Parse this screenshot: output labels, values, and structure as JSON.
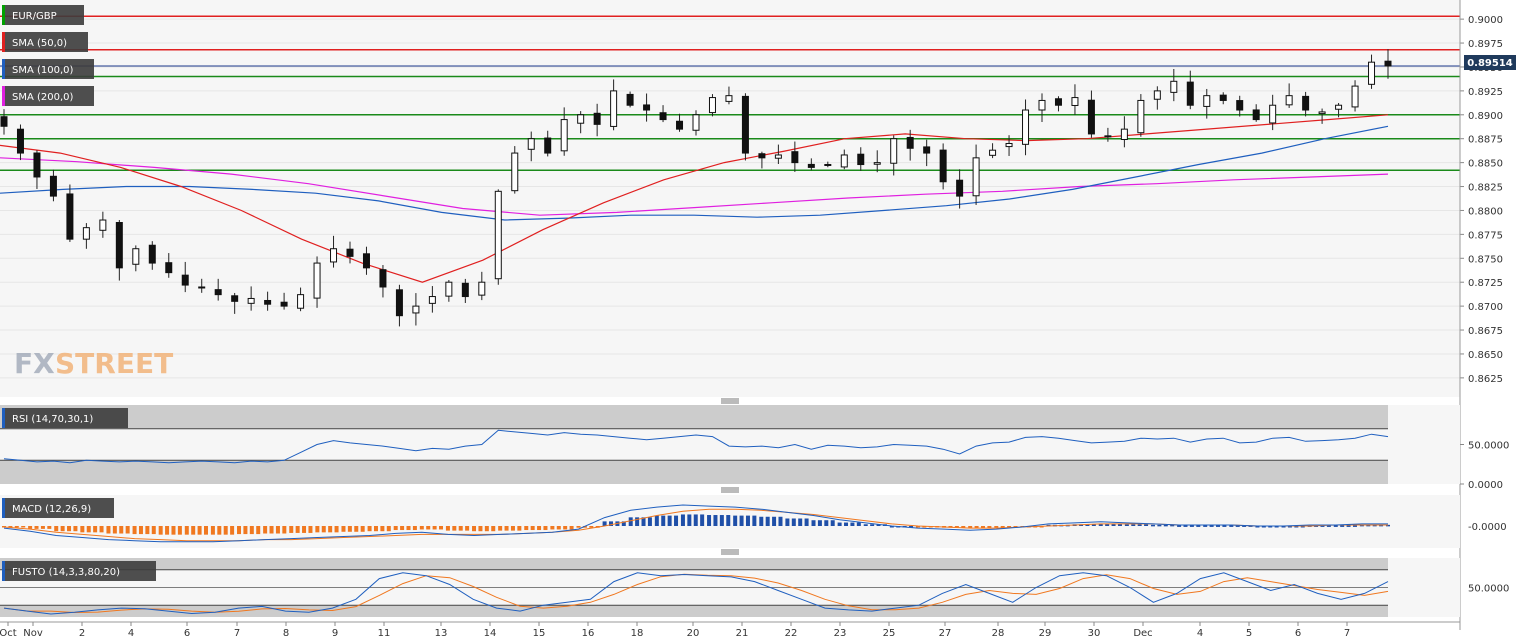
{
  "chart_data": {
    "type": "candlestick",
    "symbol": "EUR/GBP",
    "indicators": [
      "SMA (50,0)",
      "SMA (100,0)",
      "SMA (200,0)"
    ],
    "indicator_colors": [
      "#e02020",
      "#1f5fbf",
      "#e020e0"
    ],
    "current_price": "0.89514",
    "y_ticks": [
      "0.9000",
      "0.8975",
      "0.8950",
      "0.8925",
      "0.8900",
      "0.8875",
      "0.8850",
      "0.8825",
      "0.8800",
      "0.8775",
      "0.8750",
      "0.8725",
      "0.8700",
      "0.8675",
      "0.8650",
      "0.8625"
    ],
    "ylim": [
      0.8605,
      0.902
    ],
    "x_ticks": [
      "Oct",
      "Nov",
      "2",
      "4",
      "6",
      "7",
      "8",
      "9",
      "11",
      "13",
      "14",
      "15",
      "16",
      "18",
      "20",
      "21",
      "22",
      "23",
      "25",
      "27",
      "28",
      "29",
      "30",
      "Dec",
      "4",
      "5",
      "6",
      "7"
    ],
    "red_levels": [
      0.9003,
      0.8968
    ],
    "blue_level": 0.8951,
    "green_levels": [
      0.894,
      0.89,
      0.8875,
      0.8842
    ],
    "close_path": [
      0.8888,
      0.886,
      0.8835,
      0.8815,
      0.877,
      0.8782,
      0.879,
      0.874,
      0.876,
      0.8745,
      0.8735,
      0.8722,
      0.872,
      0.8712,
      0.8705,
      0.8708,
      0.8702,
      0.87,
      0.8712,
      0.8745,
      0.876,
      0.8752,
      0.874,
      0.872,
      0.869,
      0.87,
      0.871,
      0.8725,
      0.871,
      0.8725,
      0.882,
      0.886,
      0.8875,
      0.886,
      0.8895,
      0.89,
      0.889,
      0.8925,
      0.891,
      0.8905,
      0.8895,
      0.8885,
      0.89,
      0.8918,
      0.892,
      0.886,
      0.8855,
      0.8858,
      0.885,
      0.8845,
      0.8848,
      0.8858,
      0.8848,
      0.885,
      0.8875,
      0.8865,
      0.886,
      0.883,
      0.8815,
      0.8855,
      0.8863,
      0.887,
      0.8905,
      0.8915,
      0.891,
      0.8918,
      0.888,
      0.8878,
      0.8885,
      0.8915,
      0.8925,
      0.8935,
      0.891,
      0.892,
      0.8915,
      0.8905,
      0.8895,
      0.891,
      0.892,
      0.8905,
      0.8903,
      0.891,
      0.893,
      0.8955,
      0.8951
    ],
    "sma50_path": [
      0.8868,
      0.886,
      0.8845,
      0.8825,
      0.88,
      0.877,
      0.8745,
      0.8725,
      0.8748,
      0.878,
      0.8808,
      0.8832,
      0.885,
      0.8862,
      0.8875,
      0.888,
      0.8875,
      0.8873,
      0.8875,
      0.888,
      0.8885,
      0.889,
      0.8895,
      0.89
    ],
    "sma100_path": [
      0.8818,
      0.8822,
      0.8825,
      0.8825,
      0.8822,
      0.8818,
      0.881,
      0.8798,
      0.879,
      0.8792,
      0.8795,
      0.8795,
      0.8793,
      0.8795,
      0.88,
      0.8805,
      0.8812,
      0.8822,
      0.8835,
      0.8848,
      0.886,
      0.8875,
      0.8888
    ],
    "sma200_path": [
      0.8855,
      0.8851,
      0.8845,
      0.8838,
      0.8828,
      0.8815,
      0.8802,
      0.8795,
      0.8798,
      0.8803,
      0.8808,
      0.8813,
      0.8817,
      0.882,
      0.8825,
      0.8828,
      0.8832,
      0.8835,
      0.8838
    ],
    "panels": [
      {
        "label": "RSI (14,70,30,1)",
        "ticks": [
          "50.0000",
          "0.0000"
        ],
        "line_color": "#1f5fbf",
        "values": [
          32,
          30,
          28,
          29,
          27,
          30,
          29,
          28,
          29,
          28,
          27,
          28,
          29,
          28,
          27,
          29,
          28,
          30,
          40,
          50,
          55,
          52,
          50,
          48,
          45,
          42,
          45,
          44,
          48,
          50,
          68,
          66,
          64,
          62,
          65,
          63,
          62,
          60,
          58,
          56,
          58,
          60,
          62,
          60,
          48,
          47,
          48,
          46,
          50,
          44,
          49,
          48,
          46,
          47,
          50,
          49,
          48,
          44,
          38,
          48,
          52,
          53,
          59,
          60,
          58,
          55,
          52,
          53,
          54,
          58,
          57,
          58,
          53,
          57,
          58,
          52,
          53,
          58,
          59,
          54,
          55,
          56,
          58,
          63,
          60
        ]
      },
      {
        "label": "MACD (12,26,9)",
        "ticks": [
          "-0.0000"
        ],
        "line_color": "#1f5fbf",
        "signal_color": "#f07820",
        "macd": [
          -2,
          -5,
          -9,
          -11,
          -13,
          -14,
          -15,
          -15,
          -15,
          -14,
          -13,
          -12,
          -11,
          -10,
          -9,
          -7,
          -6,
          -8,
          -9,
          -8,
          -7,
          -6,
          -3,
          8,
          15,
          18,
          20,
          19,
          18,
          16,
          13,
          10,
          6,
          3,
          0,
          -2,
          -3,
          -4,
          -3,
          -1,
          2,
          3,
          4,
          3,
          2,
          1,
          1,
          1,
          0,
          0,
          1,
          1,
          2,
          2
        ],
        "signal": [
          -1,
          -3,
          -6,
          -8,
          -10,
          -12,
          -13,
          -14,
          -14,
          -14,
          -13,
          -13,
          -12,
          -11,
          -10,
          -9,
          -8,
          -8,
          -8,
          -8,
          -7,
          -6,
          -4,
          0,
          5,
          10,
          14,
          16,
          16,
          15,
          13,
          11,
          8,
          5,
          2,
          0,
          -1,
          -2,
          -2,
          -1,
          0,
          1,
          2,
          2,
          2,
          1,
          1,
          1,
          0,
          0,
          0,
          1,
          1,
          1
        ]
      },
      {
        "label": "FUSTO (14,3,3,80,20)",
        "ticks": [
          "50.0000"
        ],
        "line_color": "#1f5fbf",
        "signal_color": "#f07820",
        "k": [
          15,
          10,
          5,
          8,
          12,
          15,
          14,
          10,
          6,
          8,
          15,
          18,
          10,
          8,
          15,
          30,
          65,
          75,
          70,
          55,
          30,
          15,
          10,
          20,
          25,
          30,
          60,
          75,
          70,
          72,
          70,
          68,
          60,
          45,
          30,
          15,
          12,
          10,
          15,
          20,
          40,
          55,
          40,
          25,
          50,
          70,
          75,
          70,
          50,
          25,
          40,
          65,
          75,
          60,
          45,
          55,
          40,
          30,
          40,
          60
        ]
      },
      {
        "label": "",
        "ticks": []
      }
    ]
  }
}
